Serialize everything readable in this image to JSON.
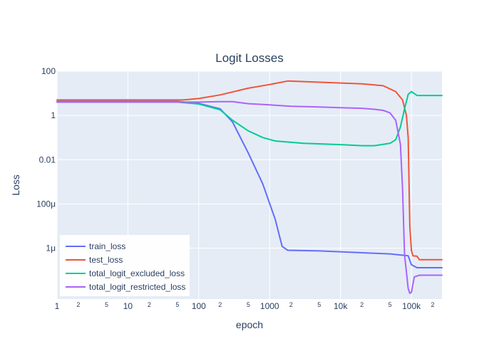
{
  "chart_data": {
    "type": "line",
    "title": "Logit Losses",
    "xlabel": "epoch",
    "ylabel": "Loss",
    "x_scale": "log",
    "y_scale": "log",
    "xlim": [
      1,
      270000
    ],
    "ylim": [
      5e-09,
      100
    ],
    "grid": true,
    "legend_position": "bottom-left",
    "background": "#e5ecf6",
    "x_ticks": [
      {
        "value": 1,
        "label": "1",
        "major": true
      },
      {
        "value": 2,
        "label": "2",
        "major": false
      },
      {
        "value": 5,
        "label": "5",
        "major": false
      },
      {
        "value": 10,
        "label": "10",
        "major": true
      },
      {
        "value": 20,
        "label": "2",
        "major": false
      },
      {
        "value": 50,
        "label": "5",
        "major": false
      },
      {
        "value": 100,
        "label": "100",
        "major": true
      },
      {
        "value": 200,
        "label": "2",
        "major": false
      },
      {
        "value": 500,
        "label": "5",
        "major": false
      },
      {
        "value": 1000,
        "label": "1000",
        "major": true
      },
      {
        "value": 2000,
        "label": "2",
        "major": false
      },
      {
        "value": 5000,
        "label": "5",
        "major": false
      },
      {
        "value": 10000,
        "label": "10k",
        "major": true
      },
      {
        "value": 20000,
        "label": "2",
        "major": false
      },
      {
        "value": 50000,
        "label": "5",
        "major": false
      },
      {
        "value": 100000,
        "label": "100k",
        "major": true
      },
      {
        "value": 200000,
        "label": "2",
        "major": false
      }
    ],
    "y_ticks": [
      {
        "value": 100,
        "label": "100"
      },
      {
        "value": 1,
        "label": "1"
      },
      {
        "value": 0.01,
        "label": "0.01"
      },
      {
        "value": 0.0001,
        "label": "100μ"
      },
      {
        "value": 1e-06,
        "label": "1μ"
      }
    ],
    "series": [
      {
        "name": "train_loss",
        "color": "#636efa",
        "points": [
          [
            1,
            4.3
          ],
          [
            50,
            4.3
          ],
          [
            100,
            3.5
          ],
          [
            200,
            2.0
          ],
          [
            300,
            0.5
          ],
          [
            500,
            0.02
          ],
          [
            800,
            0.0008
          ],
          [
            1200,
            2e-05
          ],
          [
            1500,
            1.2e-06
          ],
          [
            1800,
            8e-07
          ],
          [
            5000,
            7.5e-07
          ],
          [
            50000,
            5.5e-07
          ],
          [
            90000,
            4.5e-07
          ],
          [
            100000,
            1.8e-07
          ],
          [
            120000,
            1.3e-07
          ],
          [
            270000,
            1.3e-07
          ]
        ]
      },
      {
        "name": "test_loss",
        "color": "#ef553b",
        "points": [
          [
            1,
            5.0
          ],
          [
            60,
            5.0
          ],
          [
            100,
            5.8
          ],
          [
            200,
            8.5
          ],
          [
            500,
            17
          ],
          [
            1000,
            25
          ],
          [
            1800,
            36
          ],
          [
            20000,
            27
          ],
          [
            40000,
            22
          ],
          [
            60000,
            12
          ],
          [
            75000,
            5
          ],
          [
            85000,
            1
          ],
          [
            90000,
            0.1
          ],
          [
            95000,
            1e-05
          ],
          [
            100000,
            8e-07
          ],
          [
            105000,
            4.5e-07
          ],
          [
            120000,
            4.3e-07
          ],
          [
            130000,
            3e-07
          ],
          [
            270000,
            3e-07
          ]
        ]
      },
      {
        "name": "total_logit_excluded_loss",
        "color": "#00cc96",
        "points": [
          [
            1,
            4.0
          ],
          [
            50,
            4.0
          ],
          [
            100,
            3.3
          ],
          [
            200,
            1.8
          ],
          [
            300,
            0.6
          ],
          [
            500,
            0.2
          ],
          [
            800,
            0.1
          ],
          [
            1200,
            0.07
          ],
          [
            3000,
            0.055
          ],
          [
            10000,
            0.048
          ],
          [
            20000,
            0.043
          ],
          [
            30000,
            0.043
          ],
          [
            50000,
            0.055
          ],
          [
            60000,
            0.08
          ],
          [
            70000,
            0.3
          ],
          [
            80000,
            2
          ],
          [
            90000,
            9
          ],
          [
            100000,
            12
          ],
          [
            120000,
            8
          ],
          [
            270000,
            8
          ]
        ]
      },
      {
        "name": "total_logit_restricted_loss",
        "color": "#ab63fa",
        "points": [
          [
            1,
            4.0
          ],
          [
            100,
            4.0
          ],
          [
            200,
            4.2
          ],
          [
            300,
            4.2
          ],
          [
            500,
            3.4
          ],
          [
            1000,
            3.0
          ],
          [
            2000,
            2.6
          ],
          [
            5000,
            2.4
          ],
          [
            10000,
            2.25
          ],
          [
            20000,
            2.1
          ],
          [
            30000,
            1.9
          ],
          [
            40000,
            1.7
          ],
          [
            50000,
            1.3
          ],
          [
            60000,
            0.6
          ],
          [
            70000,
            0.05
          ],
          [
            75000,
            0.0005
          ],
          [
            80000,
            5e-07
          ],
          [
            90000,
            1.5e-08
          ],
          [
            95000,
            9e-09
          ],
          [
            100000,
            1e-08
          ],
          [
            110000,
            5e-08
          ],
          [
            130000,
            6e-08
          ],
          [
            270000,
            6e-08
          ]
        ]
      }
    ]
  }
}
